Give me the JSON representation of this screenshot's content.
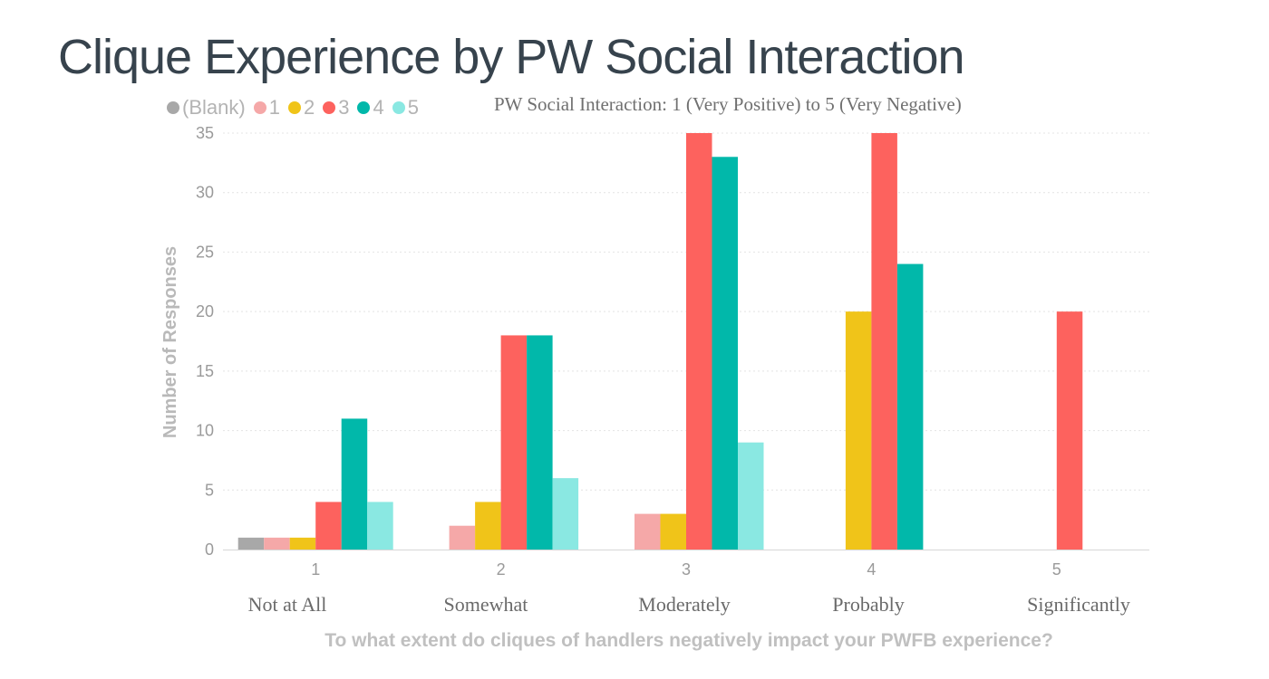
{
  "chart_data": {
    "type": "bar",
    "title": "Clique Experience by PW Social Interaction",
    "subtitle": "PW Social Interaction: 1 (Very Positive) to 5 (Very Negative)",
    "xlabel": "To what extent do cliques of handlers negatively impact your PWFB experience?",
    "ylabel": "Number of Responses",
    "ylim": [
      0,
      35
    ],
    "yticks": [
      0,
      5,
      10,
      15,
      20,
      25,
      30,
      35
    ],
    "categories": [
      "1",
      "2",
      "3",
      "4",
      "5"
    ],
    "category_descriptions": [
      "Not at All",
      "Somewhat",
      "Moderately",
      "Probably",
      "Significantly"
    ],
    "legend_position": "top-left",
    "series": [
      {
        "name": "(Blank)",
        "color": "#a8a8a8",
        "values": [
          1,
          null,
          null,
          null,
          null
        ]
      },
      {
        "name": "1",
        "color": "#f5a8a8",
        "values": [
          1,
          2,
          3,
          null,
          null
        ]
      },
      {
        "name": "2",
        "color": "#f0c419",
        "values": [
          1,
          4,
          3,
          20,
          null
        ]
      },
      {
        "name": "3",
        "color": "#fd625e",
        "values": [
          4,
          18,
          35,
          35,
          20
        ]
      },
      {
        "name": "4",
        "color": "#01b8aa",
        "values": [
          11,
          18,
          33,
          24,
          null
        ]
      },
      {
        "name": "5",
        "color": "#8ae8e2",
        "values": [
          4,
          6,
          9,
          null,
          null
        ]
      }
    ]
  }
}
